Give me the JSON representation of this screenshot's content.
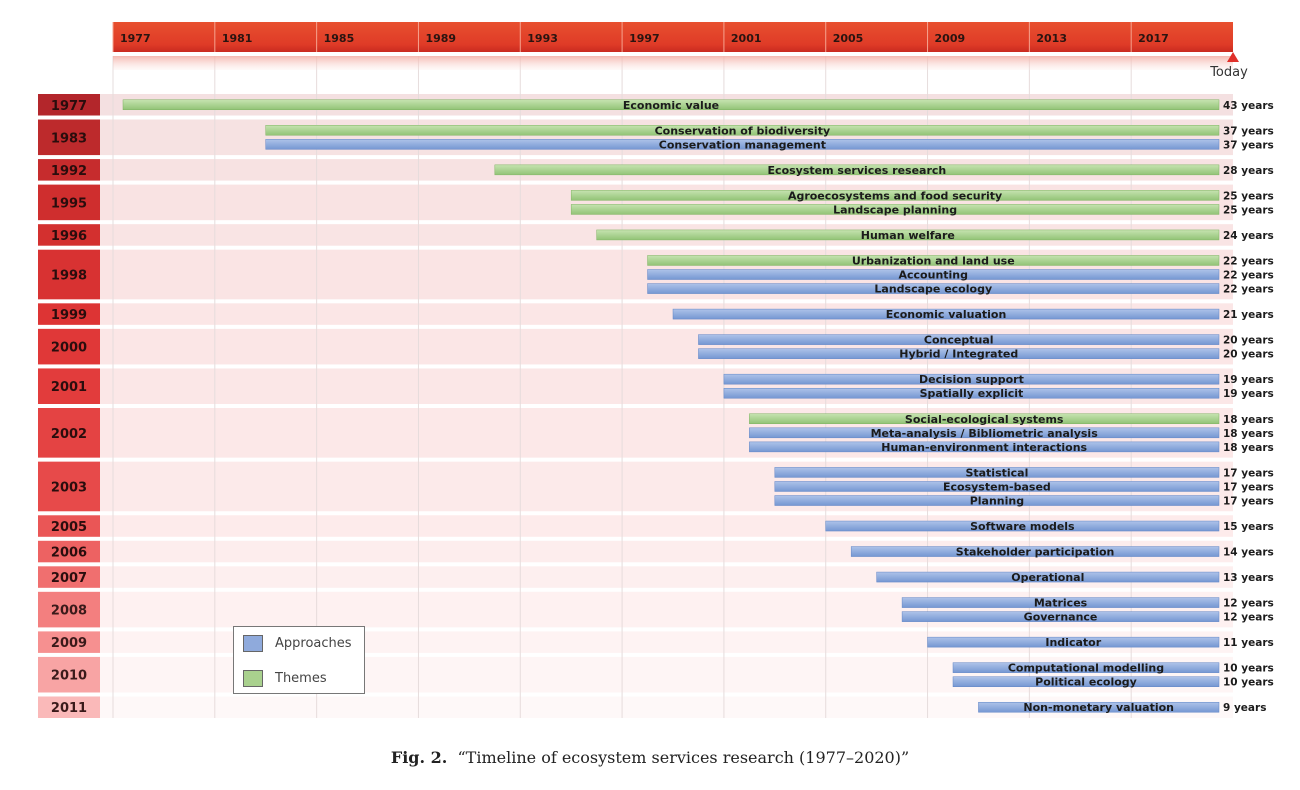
{
  "figure": {
    "caption_label": "Fig. 2.",
    "caption_text": "“Timeline of ecosystem services research (1977–2020)”"
  },
  "chart_data": {
    "type": "timeline",
    "title": "",
    "x_ticks": [
      "1977",
      "1981",
      "1985",
      "1989",
      "1993",
      "1997",
      "2001",
      "2005",
      "2009",
      "2013",
      "2017"
    ],
    "end_label": "Today",
    "xlim": [
      1977,
      2021
    ],
    "colors": {
      "approaches": "#8faadc",
      "themes": "#a9d18e",
      "header": "#e2432b"
    },
    "legend": [
      {
        "label": "Approaches",
        "category": "approaches",
        "color": "#8faadc"
      },
      {
        "label": "Themes",
        "category": "themes",
        "color": "#a9d18e"
      }
    ],
    "groups": [
      {
        "year": "1977",
        "color": "#b3262b",
        "bars": [
          {
            "label": "Economic value",
            "start": 1977,
            "category": "themes",
            "duration": "43 years"
          }
        ]
      },
      {
        "year": "1983",
        "color": "#bd2a2c",
        "bars": [
          {
            "label": "Conservation of biodiversity",
            "start": 1983,
            "category": "themes",
            "duration": "37 years"
          },
          {
            "label": "Conservation management",
            "start": 1983,
            "category": "approaches",
            "duration": "37 years"
          }
        ]
      },
      {
        "year": "1992",
        "color": "#c62c2d",
        "bars": [
          {
            "label": "Ecosystem services research",
            "start": 1992,
            "category": "themes",
            "duration": "28 years"
          }
        ]
      },
      {
        "year": "1995",
        "color": "#cf2e2e",
        "bars": [
          {
            "label": "Agroecosystems and food security",
            "start": 1995,
            "category": "themes",
            "duration": "25 years"
          },
          {
            "label": "Landscape planning",
            "start": 1995,
            "category": "themes",
            "duration": "25 years"
          }
        ]
      },
      {
        "year": "1996",
        "color": "#d3302f",
        "bars": [
          {
            "label": "Human welfare",
            "start": 1996,
            "category": "themes",
            "duration": "24 years"
          }
        ]
      },
      {
        "year": "1998",
        "color": "#d83232",
        "bars": [
          {
            "label": "Urbanization and land use",
            "start": 1998,
            "category": "themes",
            "duration": "22 years"
          },
          {
            "label": "Accounting",
            "start": 1998,
            "category": "approaches",
            "duration": "22 years"
          },
          {
            "label": "Landscape ecology",
            "start": 1998,
            "category": "approaches",
            "duration": "22 years"
          }
        ]
      },
      {
        "year": "1999",
        "color": "#dd3434",
        "bars": [
          {
            "label": "Economic valuation",
            "start": 1999,
            "category": "approaches",
            "duration": "21 years"
          }
        ]
      },
      {
        "year": "2000",
        "color": "#e03838",
        "bars": [
          {
            "label": "Conceptual",
            "start": 2000,
            "category": "approaches",
            "duration": "20 years"
          },
          {
            "label": "Hybrid / Integrated",
            "start": 2000,
            "category": "approaches",
            "duration": "20 years"
          }
        ]
      },
      {
        "year": "2001",
        "color": "#e23c3c",
        "bars": [
          {
            "label": "Decision support",
            "start": 2001,
            "category": "approaches",
            "duration": "19 years"
          },
          {
            "label": "Spatially explicit",
            "start": 2001,
            "category": "approaches",
            "duration": "19 years"
          }
        ]
      },
      {
        "year": "2002",
        "color": "#e44343",
        "bars": [
          {
            "label": "Social-ecological systems",
            "start": 2002,
            "category": "themes",
            "duration": "18 years"
          },
          {
            "label": "Meta-analysis / Bibliometric analysis",
            "start": 2002,
            "category": "approaches",
            "duration": "18 years"
          },
          {
            "label": "Human-environment interactions",
            "start": 2002,
            "category": "approaches",
            "duration": "18 years"
          }
        ]
      },
      {
        "year": "2003",
        "color": "#e74a4a",
        "bars": [
          {
            "label": "Statistical",
            "start": 2003,
            "category": "approaches",
            "duration": "17 years"
          },
          {
            "label": "Ecosystem-based",
            "start": 2003,
            "category": "approaches",
            "duration": "17 years"
          },
          {
            "label": "Planning",
            "start": 2003,
            "category": "approaches",
            "duration": "17 years"
          }
        ]
      },
      {
        "year": "2005",
        "color": "#ea5656",
        "bars": [
          {
            "label": "Software models",
            "start": 2005,
            "category": "approaches",
            "duration": "15 years"
          }
        ]
      },
      {
        "year": "2006",
        "color": "#ed6262",
        "bars": [
          {
            "label": "Stakeholder participation",
            "start": 2006,
            "category": "approaches",
            "duration": "14 years"
          }
        ]
      },
      {
        "year": "2007",
        "color": "#f06f6f",
        "bars": [
          {
            "label": "Operational",
            "start": 2007,
            "category": "approaches",
            "duration": "13 years"
          }
        ]
      },
      {
        "year": "2008",
        "color": "#f37f7f",
        "bars": [
          {
            "label": "Matrices",
            "start": 2008,
            "category": "approaches",
            "duration": "12 years"
          },
          {
            "label": "Governance",
            "start": 2008,
            "category": "approaches",
            "duration": "12 years"
          }
        ]
      },
      {
        "year": "2009",
        "color": "#f69090",
        "bars": [
          {
            "label": "Indicator",
            "start": 2009,
            "category": "approaches",
            "duration": "11 years"
          }
        ]
      },
      {
        "year": "2010",
        "color": "#f8a4a4",
        "bars": [
          {
            "label": "Computational modelling",
            "start": 2010,
            "category": "approaches",
            "duration": "10 years"
          },
          {
            "label": "Political ecology",
            "start": 2010,
            "category": "approaches",
            "duration": "10 years"
          }
        ]
      },
      {
        "year": "2011",
        "color": "#fab9b9",
        "bars": [
          {
            "label": "Non-monetary valuation",
            "start": 2011,
            "category": "approaches",
            "duration": "9 years"
          }
        ]
      }
    ]
  }
}
